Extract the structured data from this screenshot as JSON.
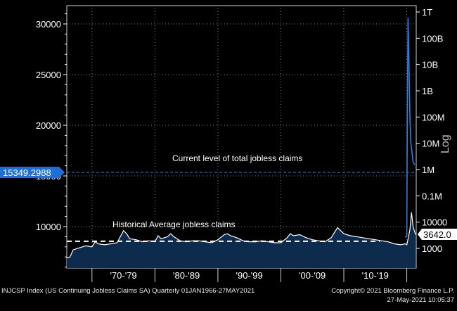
{
  "footer": {
    "left": "INJCSP Index (US Continuing Jobless Claims SA)  Quarterly 01JAN1966-27MAY2021",
    "right": "Copyright© 2021 Bloomberg Finance L.P.",
    "date": "27-May-2021 10:05:37"
  },
  "colors": {
    "background": "#000000",
    "plot_area": "#000000",
    "area_fill": "#0d2b4d",
    "series_line": "#ffffff",
    "log_series_line": "#2f7fe0",
    "current_label_bg": "#1f6fd6",
    "grid": "#7f7f7f",
    "axis_text": "#ffffff"
  },
  "chart_data": {
    "type": "area",
    "title": "",
    "grid": true,
    "left_axis": {
      "ticks": [
        10000,
        15000,
        20000,
        25000,
        30000
      ],
      "tick_labels": [
        "10000",
        "15000",
        "20000",
        "25000",
        "30000"
      ],
      "range": [
        5000,
        32000
      ]
    },
    "right_axis": {
      "scale": "log",
      "label": "Log",
      "ticks": [
        1000,
        10000,
        100000,
        1000000,
        10000000,
        100000000,
        1000000000,
        10000000000,
        100000000000,
        1000000000000
      ],
      "tick_labels": [
        "1000",
        "10000",
        "0.1M",
        "1M",
        "10M",
        "100M",
        "1B",
        "10B",
        "100B",
        "1T"
      ]
    },
    "x_axis": {
      "range": [
        1966,
        2021.5
      ],
      "period_labels": [
        "'70-'79",
        "'80-'89",
        "'90-'99",
        "'00-'09",
        "'10-'19"
      ],
      "period_starts": [
        1970,
        1980,
        1990,
        2000,
        2010
      ],
      "period_ends": [
        1979.99,
        1989.99,
        1999.99,
        2009.99,
        2019.99
      ]
    },
    "series": [
      {
        "axis": "left",
        "x": [
          1966,
          1966.5,
          1967,
          1968,
          1969,
          1970,
          1970.5,
          1971,
          1972,
          1973,
          1974,
          1974.5,
          1975,
          1975.5,
          1976,
          1977,
          1978,
          1979,
          1980,
          1980.5,
          1981,
          1982,
          1982.5,
          1983,
          1984,
          1985,
          1986,
          1987,
          1988,
          1989,
          1990,
          1991,
          1991.5,
          1992,
          1993,
          1994,
          1995,
          1996,
          1997,
          1998,
          1999,
          2000,
          2001,
          2001.5,
          2002,
          2003,
          2004,
          2005,
          2006,
          2007,
          2008,
          2008.5,
          2009,
          2009.5,
          2010,
          2011,
          2012,
          2013,
          2014,
          2015,
          2016,
          2017,
          2018,
          2019,
          2019.75,
          2020,
          2020.25,
          2020.5,
          2020.75,
          2021,
          2021.4
        ],
        "values": [
          6900,
          7000,
          7700,
          7900,
          8100,
          8000,
          8500,
          8300,
          8200,
          8300,
          8400,
          9000,
          9600,
          9300,
          8800,
          8700,
          8500,
          8600,
          8500,
          9100,
          8800,
          9000,
          9300,
          9000,
          8600,
          8500,
          8600,
          8600,
          8500,
          8400,
          8700,
          9200,
          9300,
          9100,
          8900,
          8600,
          8500,
          8500,
          8600,
          8500,
          8400,
          8400,
          8900,
          9300,
          9100,
          9200,
          8900,
          8700,
          8600,
          8500,
          8900,
          9400,
          9900,
          9600,
          9300,
          9100,
          9000,
          8900,
          8800,
          8700,
          8600,
          8500,
          8300,
          8200,
          8300,
          8200,
          8900,
          9700,
          11400,
          10000,
          9200
        ]
      },
      {
        "axis": "right",
        "x": [
          2019.75,
          2020,
          2020.08,
          2020.2,
          2020.35,
          2020.5,
          2020.65,
          2020.85,
          2021,
          2021.25
        ],
        "values": [
          2600,
          3000,
          100000000,
          600000000000,
          10000000000,
          100000000,
          10000000,
          4000000,
          2000000,
          1500000
        ]
      }
    ],
    "annotations": [
      {
        "text": "Current level of total jobless claims",
        "value": 15349.2988,
        "value_label": "15349.2988",
        "style": "dashed-blue"
      },
      {
        "text": "Historical Average jobless claims",
        "value": 8550,
        "style": "dashed-white"
      }
    ],
    "last_value_label": "3642.0"
  }
}
